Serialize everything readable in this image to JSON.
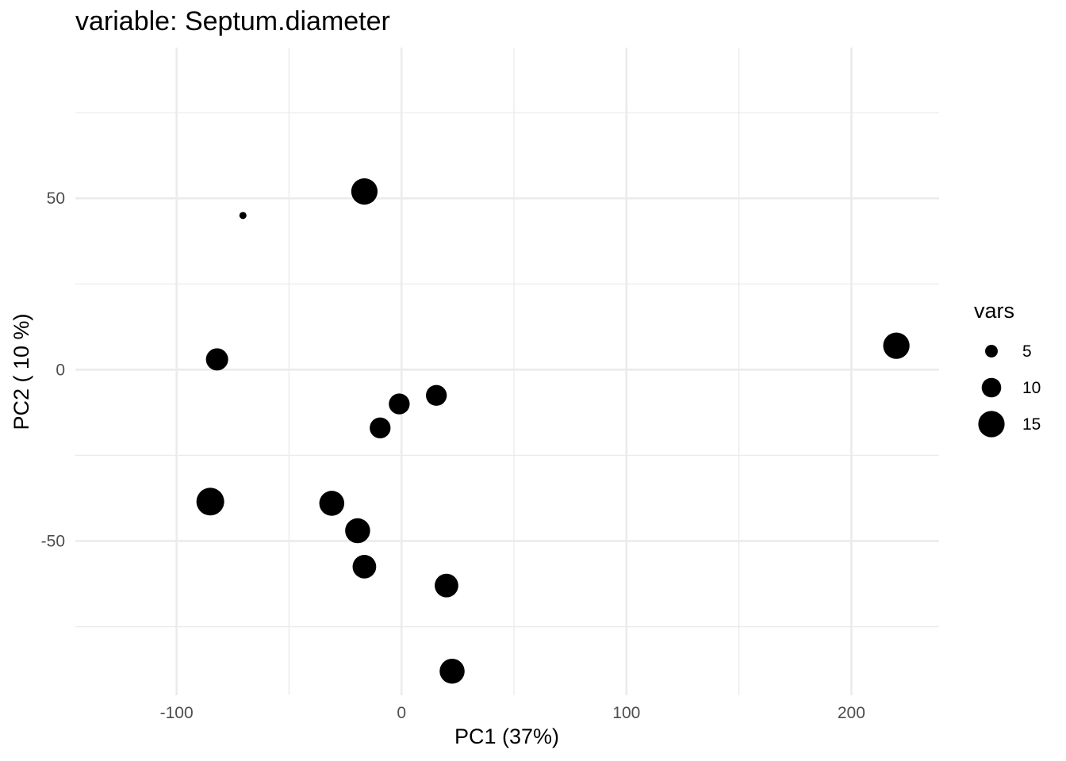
{
  "chart_data": {
    "type": "scatter",
    "title": "variable: Septum.diameter",
    "xlabel": "PC1 (37%)",
    "ylabel": "PC2 ( 10 %)",
    "xlim": [
      -145,
      239
    ],
    "ylim": [
      -95,
      94
    ],
    "x_ticks": [
      -100,
      0,
      100,
      200
    ],
    "x_tick_labels": [
      "-100",
      "0",
      "100",
      "200"
    ],
    "y_ticks": [
      50,
      0,
      -50
    ],
    "y_tick_labels": [
      "50",
      "0",
      "-50"
    ],
    "grid": true,
    "point_color": "#000000",
    "grid_color": "#ebebeb",
    "legend": {
      "title": "vars",
      "position": "right",
      "entries": [
        {
          "label": "5",
          "size": 5
        },
        {
          "label": "10",
          "size": 10
        },
        {
          "label": "15",
          "size": 15
        }
      ]
    },
    "size_range": {
      "min_value": 1,
      "max_value": 16
    },
    "points": [
      {
        "x": -16.5,
        "y": 52,
        "size": 15
      },
      {
        "x": -70.5,
        "y": 45,
        "size": 1
      },
      {
        "x": -82,
        "y": 3,
        "size": 12
      },
      {
        "x": 220,
        "y": 7,
        "size": 15
      },
      {
        "x": 15.5,
        "y": -7.5,
        "size": 11
      },
      {
        "x": -1,
        "y": -10,
        "size": 11
      },
      {
        "x": -9.5,
        "y": -17,
        "size": 11
      },
      {
        "x": -85,
        "y": -38.5,
        "size": 16
      },
      {
        "x": -31,
        "y": -39,
        "size": 14
      },
      {
        "x": -19.5,
        "y": -47,
        "size": 14
      },
      {
        "x": -16.5,
        "y": -57.5,
        "size": 13
      },
      {
        "x": 20,
        "y": -63,
        "size": 13
      },
      {
        "x": 22.5,
        "y": -88,
        "size": 14
      }
    ]
  }
}
